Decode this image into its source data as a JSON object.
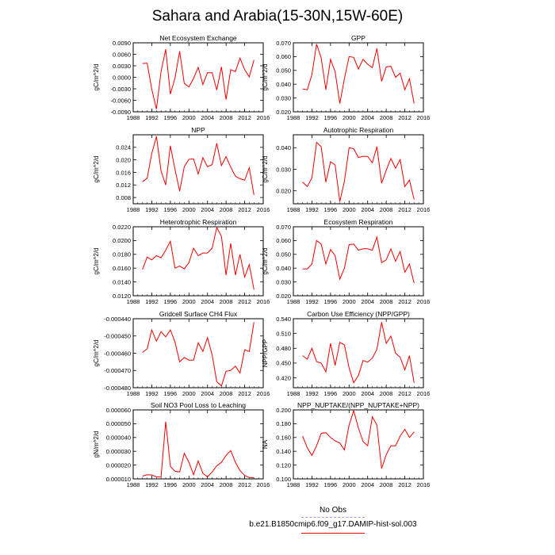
{
  "title": "Sahara and Arabia(15-30N,15W-60E)",
  "colors": {
    "model_line": "#ee0000",
    "obs_line": "#9999ff"
  },
  "legend": {
    "obs_label": "No Obs",
    "model_label": "b.e21.B1850cmip6.f09_g17.DAMIP-hist-sol.003"
  },
  "chart_data": [
    {
      "type": "line",
      "title": "Net Ecosystem Exchange",
      "ylabel": "gC/m^2/d",
      "xlim": [
        1988,
        2016
      ],
      "ylim": [
        -0.009,
        0.009
      ],
      "xticks": [
        "1988",
        "1992",
        "1996",
        "2000",
        "2004",
        "2008",
        "2012",
        "2016"
      ],
      "yticks": [
        "-0.0090",
        "-0.0060",
        "-0.0030",
        "0.0000",
        "0.0030",
        "0.0060",
        "0.0090"
      ],
      "x": [
        1990,
        1991,
        1992,
        1993,
        1994,
        1995,
        1996,
        1997,
        1998,
        1999,
        2000,
        2001,
        2002,
        2003,
        2004,
        2005,
        2006,
        2007,
        2008,
        2009,
        2010,
        2011,
        2012,
        2013,
        2014
      ],
      "series": [
        {
          "values": [
            0.0036,
            0.0037,
            -0.0031,
            -0.0083,
            0.0015,
            0.0073,
            -0.0044,
            -0.0002,
            0.0068,
            -0.0016,
            -0.0025,
            -0.0003,
            0.0026,
            -0.0019,
            0.0012,
            0.0012,
            -0.0033,
            0.0027,
            -0.0058,
            0.002,
            0.0015,
            0.005,
            0.002,
            0.0001,
            0.0045
          ]
        }
      ]
    },
    {
      "type": "line",
      "title": "GPP",
      "ylabel": "gC/m^2/d",
      "xlim": [
        1988,
        2016
      ],
      "ylim": [
        0.02,
        0.07
      ],
      "xticks": [
        "1988",
        "1992",
        "1996",
        "2000",
        "2004",
        "2008",
        "2012",
        "2016"
      ],
      "yticks": [
        "0.020",
        "0.030",
        "0.040",
        "0.050",
        "0.060",
        "0.070"
      ],
      "x": [
        1990,
        1991,
        1992,
        1993,
        1994,
        1995,
        1996,
        1997,
        1998,
        1999,
        2000,
        2001,
        2002,
        2003,
        2004,
        2005,
        2006,
        2007,
        2008,
        2009,
        2010,
        2011,
        2012,
        2013,
        2014
      ],
      "series": [
        {
          "values": [
            0.0365,
            0.036,
            0.047,
            0.069,
            0.059,
            0.036,
            0.058,
            0.049,
            0.026,
            0.044,
            0.06,
            0.0595,
            0.051,
            0.058,
            0.0545,
            0.052,
            0.066,
            0.042,
            0.0525,
            0.053,
            0.045,
            0.048,
            0.036,
            0.044,
            0.026
          ]
        }
      ]
    },
    {
      "type": "line",
      "title": "NPP",
      "ylabel": "gC/m^2/d",
      "xlim": [
        1988,
        2016
      ],
      "ylim": [
        0.006,
        0.028
      ],
      "xticks": [
        "1988",
        "1992",
        "1996",
        "2000",
        "2004",
        "2008",
        "2012",
        "2016"
      ],
      "yticks": [
        "0.008",
        "0.012",
        "0.016",
        "0.020",
        "0.024"
      ],
      "x": [
        1990,
        1991,
        1992,
        1993,
        1994,
        1995,
        1996,
        1997,
        1998,
        1999,
        2000,
        2001,
        2002,
        2003,
        2004,
        2005,
        2006,
        2007,
        2008,
        2009,
        2010,
        2011,
        2012,
        2013,
        2014
      ],
      "series": [
        {
          "values": [
            0.013,
            0.0142,
            0.022,
            0.0275,
            0.0165,
            0.012,
            0.0245,
            0.017,
            0.01,
            0.0178,
            0.0202,
            0.0203,
            0.0155,
            0.0207,
            0.0178,
            0.0185,
            0.0253,
            0.0182,
            0.021,
            0.0177,
            0.0148,
            0.014,
            0.0135,
            0.0175,
            0.0088
          ]
        }
      ]
    },
    {
      "type": "line",
      "title": "Autotrophic Respiration",
      "ylabel": "gC/m^2/d",
      "xlim": [
        1988,
        2016
      ],
      "ylim": [
        0.014,
        0.046
      ],
      "xticks": [
        "1988",
        "1992",
        "1996",
        "2000",
        "2004",
        "2008",
        "2012",
        "2016"
      ],
      "yticks": [
        "0.020",
        "0.030",
        "0.040"
      ],
      "x": [
        1990,
        1991,
        1992,
        1993,
        1994,
        1995,
        1996,
        1997,
        1998,
        1999,
        2000,
        2001,
        2002,
        2003,
        2004,
        2005,
        2006,
        2007,
        2008,
        2009,
        2010,
        2011,
        2012,
        2013,
        2014
      ],
      "series": [
        {
          "values": [
            0.024,
            0.022,
            0.026,
            0.0425,
            0.0405,
            0.024,
            0.0335,
            0.032,
            0.015,
            0.0245,
            0.04,
            0.0395,
            0.0355,
            0.036,
            0.036,
            0.033,
            0.0405,
            0.0235,
            0.0295,
            0.035,
            0.0305,
            0.0345,
            0.022,
            0.025,
            0.016
          ]
        }
      ]
    },
    {
      "type": "line",
      "title": "Heterotrophic Respiration",
      "ylabel": "gC/m^2/d",
      "xlim": [
        1988,
        2016
      ],
      "ylim": [
        0.012,
        0.022
      ],
      "xticks": [
        "1988",
        "1992",
        "1996",
        "2000",
        "2004",
        "2008",
        "2012",
        "2016"
      ],
      "yticks": [
        "0.0120",
        "0.0140",
        "0.0160",
        "0.0180",
        "0.0200",
        "0.0220"
      ],
      "x": [
        1990,
        1991,
        1992,
        1993,
        1994,
        1995,
        1996,
        1997,
        1998,
        1999,
        2000,
        2001,
        2002,
        2003,
        2004,
        2005,
        2006,
        2007,
        2008,
        2009,
        2010,
        2011,
        2012,
        2013,
        2014
      ],
      "series": [
        {
          "values": [
            0.0158,
            0.0176,
            0.0172,
            0.0178,
            0.0175,
            0.0186,
            0.0199,
            0.016,
            0.0163,
            0.0159,
            0.0168,
            0.0189,
            0.0178,
            0.0182,
            0.0182,
            0.0189,
            0.0219,
            0.0206,
            0.015,
            0.0196,
            0.015,
            0.018,
            0.0147,
            0.0165,
            0.0129
          ]
        }
      ]
    },
    {
      "type": "line",
      "title": "Ecosystem Respiration",
      "ylabel": "gC/m^2/d",
      "xlim": [
        1988,
        2016
      ],
      "ylim": [
        0.02,
        0.07
      ],
      "xticks": [
        "1988",
        "1992",
        "1996",
        "2000",
        "2004",
        "2008",
        "2012",
        "2016"
      ],
      "yticks": [
        "0.020",
        "0.030",
        "0.040",
        "0.050",
        "0.060",
        "0.070"
      ],
      "x": [
        1990,
        1991,
        1992,
        1993,
        1994,
        1995,
        1996,
        1997,
        1998,
        1999,
        2000,
        2001,
        2002,
        2003,
        2004,
        2005,
        2006,
        2007,
        2008,
        2009,
        2010,
        2011,
        2012,
        2013,
        2014
      ],
      "series": [
        {
          "values": [
            0.0395,
            0.0395,
            0.043,
            0.06,
            0.0575,
            0.043,
            0.0535,
            0.049,
            0.032,
            0.04,
            0.057,
            0.0575,
            0.053,
            0.054,
            0.054,
            0.053,
            0.0625,
            0.044,
            0.046,
            0.054,
            0.045,
            0.052,
            0.037,
            0.043,
            0.029
          ]
        }
      ]
    },
    {
      "type": "line",
      "title": "Gridcell Surface CH4 Flux",
      "ylabel": "gC/m^2/d",
      "xlim": [
        1988,
        2016
      ],
      "ylim": [
        -0.00048,
        -0.00044
      ],
      "xticks": [
        "1988",
        "1992",
        "1996",
        "2000",
        "2004",
        "2008",
        "2012",
        "2016"
      ],
      "yticks": [
        "-0.000480",
        "-0.000470",
        "-0.000460",
        "-0.000450",
        "-0.000440"
      ],
      "x": [
        1990,
        1991,
        1992,
        1993,
        1994,
        1995,
        1996,
        1997,
        1998,
        1999,
        2000,
        2001,
        2002,
        2003,
        2004,
        2005,
        2006,
        2007,
        2008,
        2009,
        2010,
        2011,
        2012,
        2013,
        2014
      ],
      "series": [
        {
          "values": [
            -0.0004595,
            -0.0004575,
            -0.0004465,
            -0.000453,
            -0.0004475,
            -0.0004505,
            -0.0004465,
            -0.0004535,
            -0.000465,
            -0.0004625,
            -0.000464,
            -0.000464,
            -0.000454,
            -0.000459,
            -0.000451,
            -0.000461,
            -0.0004765,
            -0.000479,
            -0.0004705,
            -0.00047,
            -0.0004675,
            -0.0004715,
            -0.000458,
            -0.000459,
            -0.000442
          ]
        }
      ]
    },
    {
      "type": "line",
      "title": "Carbon Use Efficiency (NPP/GPP)",
      "ylabel": "NPP/GPP",
      "xlim": [
        1988,
        2016
      ],
      "ylim": [
        0.4,
        0.54
      ],
      "xticks": [
        "1988",
        "1992",
        "1996",
        "2000",
        "2004",
        "2008",
        "2012",
        "2016"
      ],
      "yticks": [
        "0.420",
        "0.450",
        "0.480",
        "0.510",
        "0.540"
      ],
      "x": [
        1990,
        1991,
        1992,
        1993,
        1994,
        1995,
        1996,
        1997,
        1998,
        1999,
        2000,
        2001,
        2002,
        2003,
        2004,
        2005,
        2006,
        2007,
        2008,
        2009,
        2010,
        2011,
        2012,
        2013,
        2014
      ],
      "series": [
        {
          "values": [
            0.465,
            0.458,
            0.48,
            0.453,
            0.45,
            0.432,
            0.49,
            0.445,
            0.492,
            0.487,
            0.44,
            0.41,
            0.425,
            0.455,
            0.452,
            0.46,
            0.478,
            0.533,
            0.49,
            0.505,
            0.47,
            0.462,
            0.436,
            0.465,
            0.41
          ]
        }
      ]
    },
    {
      "type": "line",
      "title": "Soil NO3 Pool Loss to Leaching",
      "ylabel": "gN/m^2/d",
      "xlim": [
        1988,
        2016
      ],
      "ylim": [
        1e-05,
        6e-05
      ],
      "xticks": [
        "1988",
        "1992",
        "1996",
        "2000",
        "2004",
        "2008",
        "2012",
        "2016"
      ],
      "yticks": [
        "0.000010",
        "0.000020",
        "0.000030",
        "0.000040",
        "0.000050",
        "0.000060"
      ],
      "x": [
        1990,
        1991,
        1992,
        1993,
        1994,
        1995,
        1996,
        1997,
        1998,
        1999,
        2000,
        2001,
        2002,
        2003,
        2004,
        2005,
        2006,
        2007,
        2008,
        2009,
        2010,
        2011,
        2012,
        2013,
        2014
      ],
      "series": [
        {
          "values": [
            1.2e-05,
            1.3e-05,
            1.28e-05,
            1.15e-05,
            1.13e-05,
            5.15e-05,
            1.9e-05,
            1.55e-05,
            1.5e-05,
            2.85e-05,
            2.2e-05,
            1.3e-05,
            2.3e-05,
            1.4e-05,
            1.15e-05,
            1.5e-05,
            1.95e-05,
            2.2e-05,
            2.7e-05,
            3.05e-05,
            2.2e-05,
            1.6e-05,
            1.25e-05,
            1.1e-05,
            1.08e-05
          ]
        }
      ]
    },
    {
      "type": "line",
      "title": "NPP_NUPTAKE/(NPP_NUPTAKE+NPP)",
      "ylabel": "NA",
      "xlim": [
        1988,
        2016
      ],
      "ylim": [
        0.1,
        0.2
      ],
      "xticks": [
        "1988",
        "1992",
        "1996",
        "2000",
        "2004",
        "2008",
        "2012",
        "2016"
      ],
      "yticks": [
        "0.100",
        "0.120",
        "0.140",
        "0.160",
        "0.180",
        "0.200"
      ],
      "x": [
        1990,
        1991,
        1992,
        1993,
        1994,
        1995,
        1996,
        1997,
        1998,
        1999,
        2000,
        2001,
        2002,
        2003,
        2004,
        2005,
        2006,
        2007,
        2008,
        2009,
        2010,
        2011,
        2012,
        2013,
        2014
      ],
      "series": [
        {
          "values": [
            0.162,
            0.145,
            0.134,
            0.148,
            0.166,
            0.167,
            0.16,
            0.155,
            0.152,
            0.142,
            0.178,
            0.199,
            0.174,
            0.154,
            0.148,
            0.19,
            0.178,
            0.115,
            0.135,
            0.148,
            0.148,
            0.162,
            0.172,
            0.16,
            0.168
          ]
        }
      ]
    }
  ]
}
